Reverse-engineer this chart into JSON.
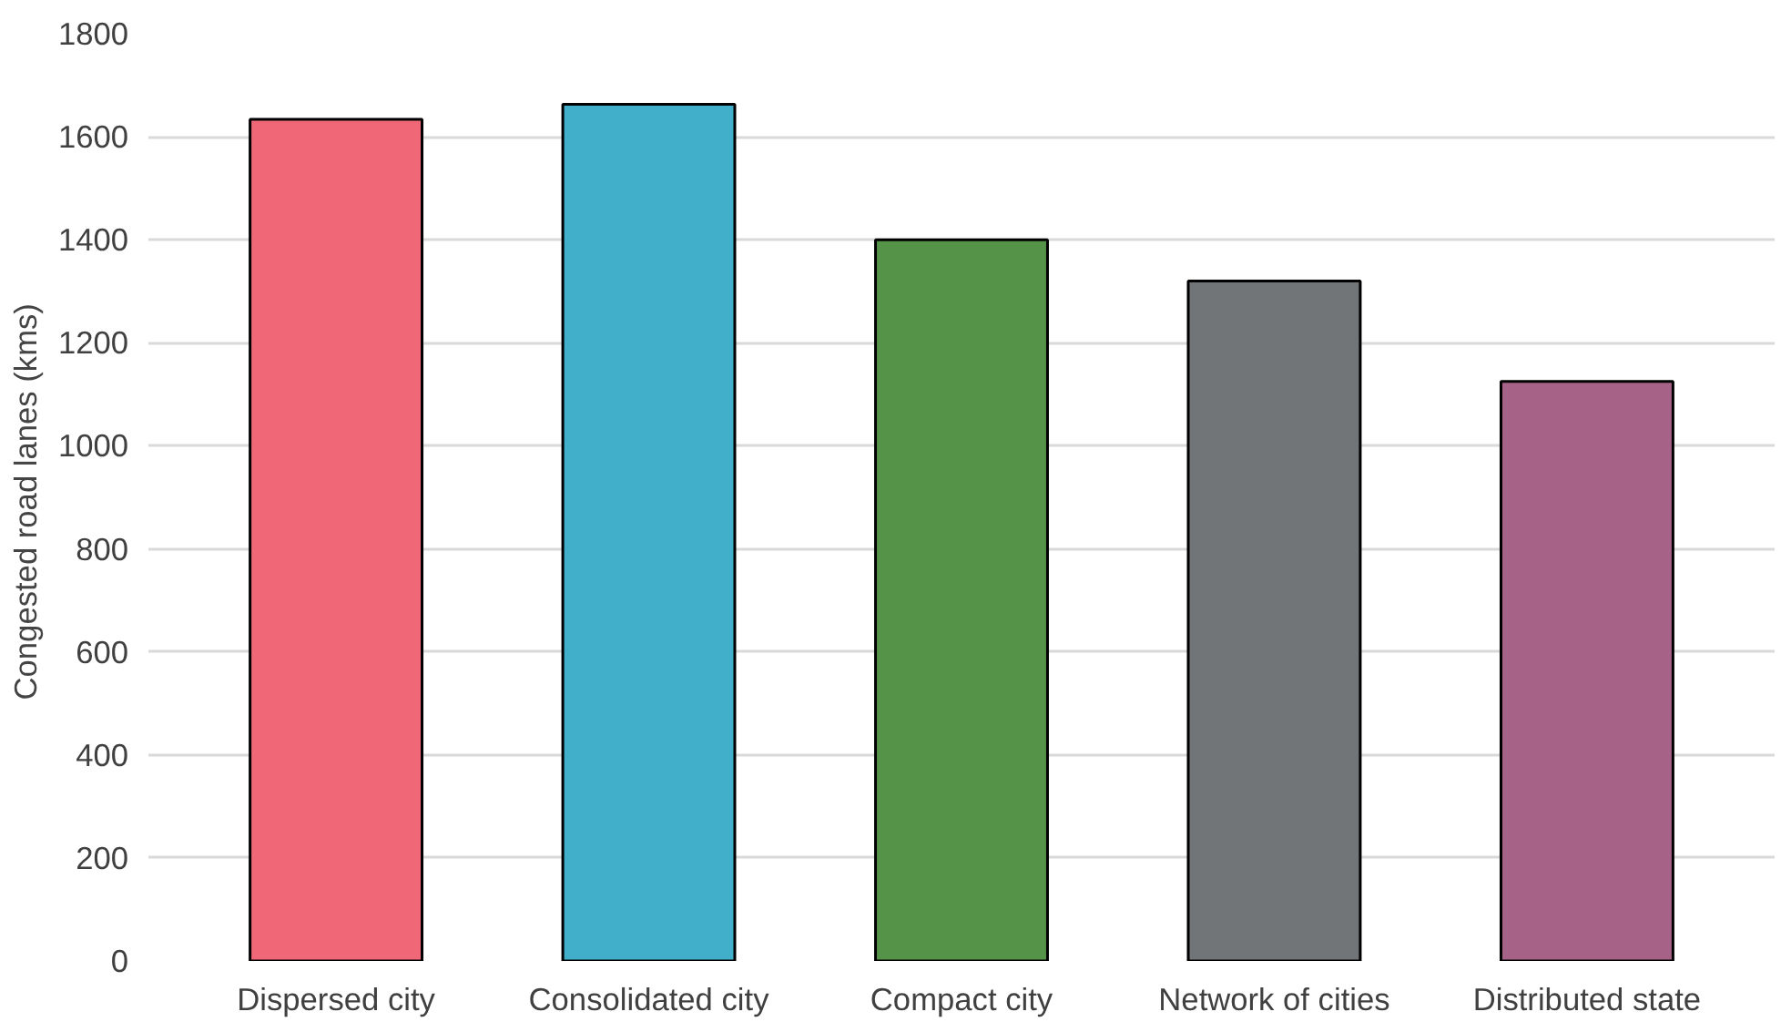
{
  "chart_data": {
    "type": "bar",
    "ylabel": "Congested road lanes  (kms)",
    "categories": [
      "Dispersed city",
      "Consolidated city",
      "Compact city",
      "Network of cities",
      "Distributed state"
    ],
    "values": [
      1634,
      1663,
      1400,
      1320,
      1125
    ],
    "colors": [
      "#f06877",
      "#41afc9",
      "#559448",
      "#717578",
      "#a66387"
    ],
    "ylim": [
      0,
      1800
    ],
    "yticks": [
      0,
      200,
      400,
      600,
      800,
      1000,
      1200,
      1400,
      1600,
      1800
    ],
    "grid": "y"
  }
}
